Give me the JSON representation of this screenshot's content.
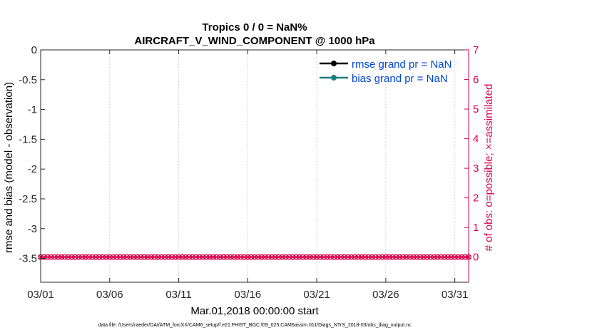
{
  "chart_data": {
    "type": "line",
    "title": [
      "Tropics 0 / 0 = NaN%",
      "AIRCRAFT_V_WIND_COMPONENT @ 1000 hPa"
    ],
    "xlabel": "Mar.01,2018 00:00:00 start",
    "ylabel_left": "rmse and bias (model - observation)",
    "ylabel_right": "# of obs: o=possible; ×=assimilated",
    "x_tick_labels": [
      "03/01",
      "03/06",
      "03/11",
      "03/16",
      "03/21",
      "03/26",
      "03/31"
    ],
    "x_tick_days": [
      0,
      5,
      10,
      15,
      20,
      25,
      30
    ],
    "xlim_days": [
      0,
      31
    ],
    "ylim_left": [
      -3.9,
      0
    ],
    "y_left_ticks": [
      0,
      -0.5,
      -1,
      -1.5,
      -2,
      -2.5,
      -3,
      -3.5
    ],
    "y_left_tick_labels": [
      "0",
      "-0.5",
      "-1",
      "-1.5",
      "-2",
      "-2.5",
      "-3",
      "-3.5"
    ],
    "ylim_right": [
      -0.85,
      7
    ],
    "y_right_ticks": [
      0,
      1,
      2,
      3,
      4,
      5,
      6,
      7
    ],
    "y_right_tick_labels": [
      "0",
      "1",
      "2",
      "3",
      "4",
      "5",
      "6",
      "7"
    ],
    "grid": "x-vertical-dotted",
    "legend_position": "top-right",
    "series": [
      {
        "name": "rmse grand pr = NaN",
        "axis": "left",
        "color": "#000000",
        "values": []
      },
      {
        "name": "bias grand pr = NaN",
        "axis": "left",
        "color": "#1a7f80",
        "values": []
      },
      {
        "name": "# of obs possible",
        "axis": "right",
        "color": "#d6004c",
        "marker": "o",
        "x_step_days": 0.25,
        "count": 125,
        "value": 0
      },
      {
        "name": "# of obs assimilated",
        "axis": "right",
        "color": "#d6004c",
        "marker": "x",
        "x_step_days": 0.25,
        "count": 125,
        "value": 0
      }
    ]
  },
  "colors": {
    "axis": "#262626",
    "right_axis": "#d6004c",
    "legend_text": "#0046d5",
    "grid": "#c8c8c8"
  },
  "footer": "data file: /Users/raeder/DAI/ATM_forcXX/CAM6_setup/f.e21.FHIST_BGC.f09_025.CAM6assim.011/Diags_NTrS_2018-03/obs_diag_output.nc"
}
